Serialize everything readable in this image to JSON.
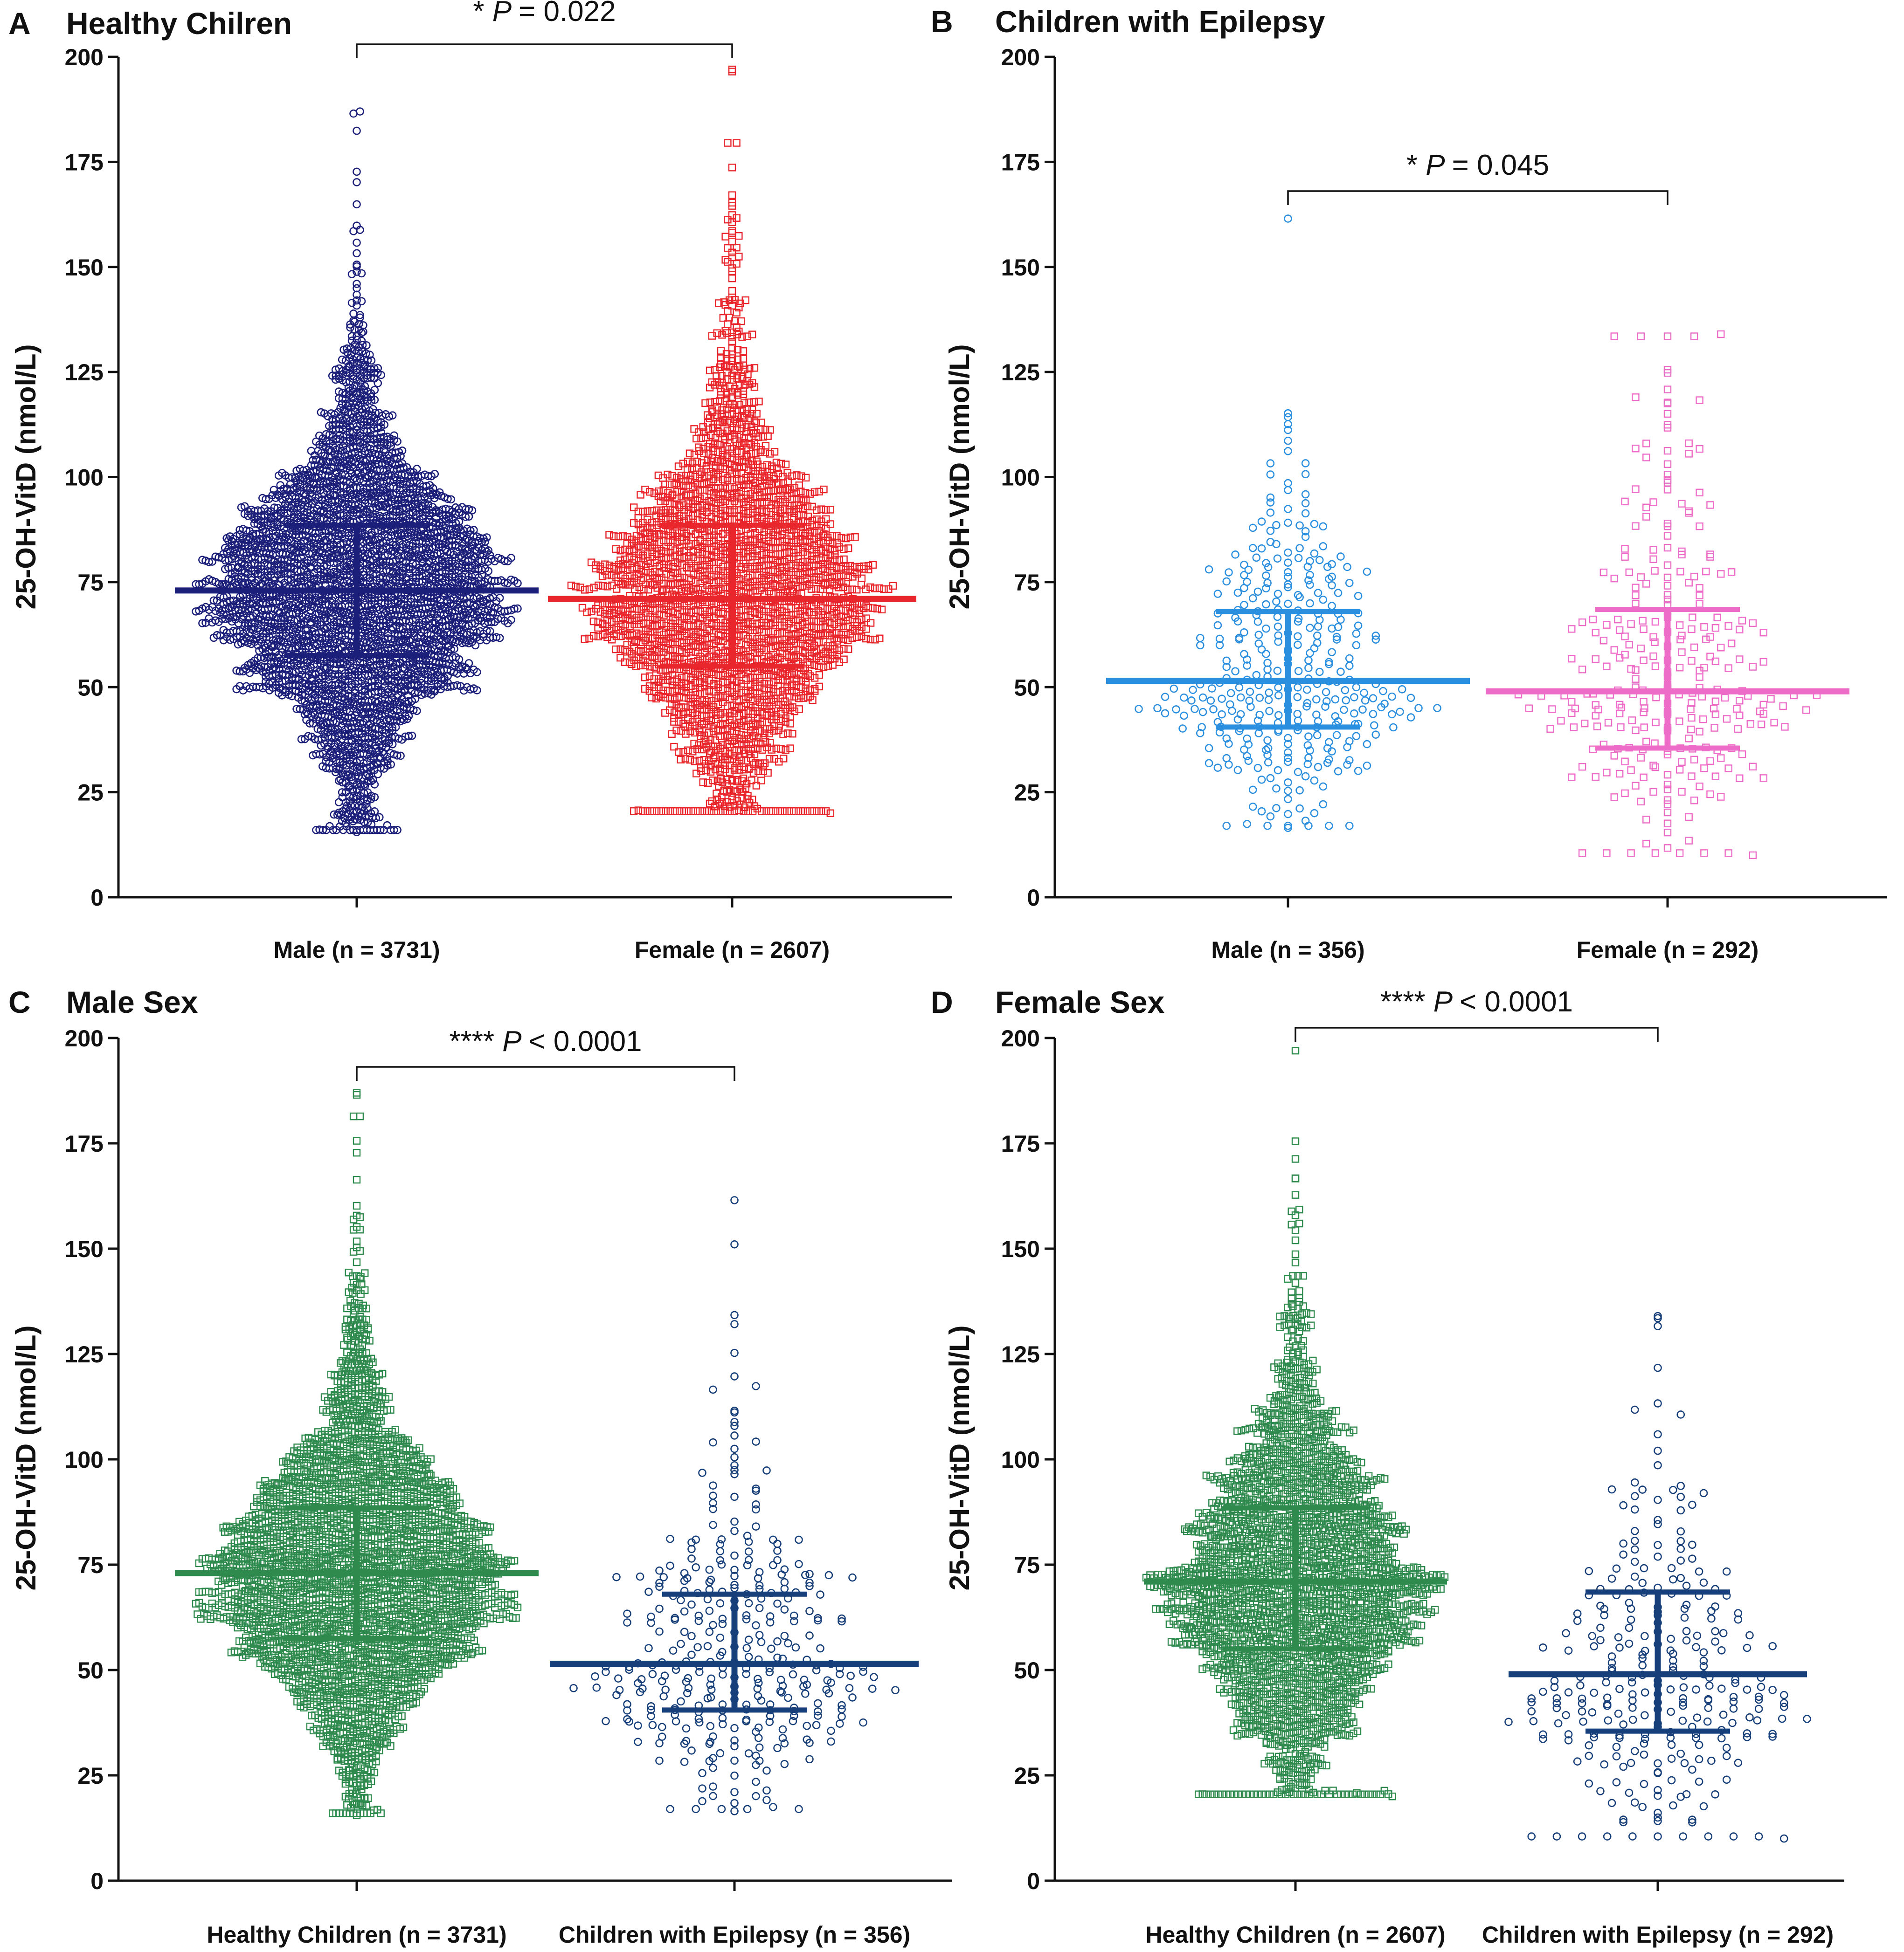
{
  "figure": {
    "panels": [
      {
        "letter": "A",
        "title": "Healthy Chilren"
      },
      {
        "letter": "B",
        "title": "Children with Epilepsy"
      },
      {
        "letter": "C",
        "title": "Male Sex"
      },
      {
        "letter": "D",
        "title": "Female Sex"
      }
    ]
  },
  "chart_data": [
    {
      "type": "scatter",
      "subtype": "beeswarm",
      "title": "Healthy Chilren",
      "ylabel": "25-OH-VitD (nmol/L)",
      "ylim": [
        0,
        200
      ],
      "yticks": [
        "0",
        "25",
        "50",
        "75",
        "100",
        "125",
        "150",
        "175",
        "200"
      ],
      "categories": [
        "Male (n = 3731)",
        "Female (n = 2607)"
      ],
      "series": [
        {
          "name": "Male (n = 3731)",
          "marker": "circle",
          "color": "#1c1f7a",
          "n": 3731,
          "median": 73,
          "q1": 57.5,
          "q3": 88.5,
          "min": 15.5,
          "max": 187
        },
        {
          "name": "Female (n = 2607)",
          "marker": "square",
          "color": "#e8262b",
          "n": 2607,
          "median": 71,
          "q1": 55,
          "q3": 88.5,
          "min": 20,
          "max": 197
        }
      ],
      "annotation": {
        "stars": "*",
        "p_label": "P",
        "p_text": "= 0.022",
        "from": 0,
        "to": 1
      }
    },
    {
      "type": "scatter",
      "subtype": "beeswarm",
      "title": "Children with Epilepsy",
      "ylabel": "25-OH-VitD (nmol/L)",
      "ylim": [
        0,
        200
      ],
      "yticks": [
        "0",
        "25",
        "50",
        "75",
        "100",
        "125",
        "150",
        "175",
        "200"
      ],
      "categories": [
        "Male (n = 356)",
        "Female (n = 292)"
      ],
      "series": [
        {
          "name": "Male (n = 356)",
          "marker": "circle",
          "color": "#2b8fe0",
          "n": 356,
          "median": 51.5,
          "q1": 40.5,
          "q3": 68,
          "min": 16.5,
          "max": 161.5
        },
        {
          "name": "Female (n = 292)",
          "marker": "square",
          "color": "#ec6cc8",
          "n": 292,
          "median": 49,
          "q1": 35.5,
          "q3": 68.5,
          "min": 10,
          "max": 134
        }
      ],
      "annotation": {
        "stars": "*",
        "p_label": "P",
        "p_text": "= 0.045",
        "from": 0,
        "to": 1
      }
    },
    {
      "type": "scatter",
      "subtype": "beeswarm",
      "title": "Male Sex",
      "ylabel": "25-OH-VitD (nmol/L)",
      "ylim": [
        0,
        200
      ],
      "yticks": [
        "0",
        "25",
        "50",
        "75",
        "100",
        "125",
        "150",
        "175",
        "200"
      ],
      "categories": [
        "Healthy Children (n = 3731)",
        "Children with Epilepsy (n = 356)"
      ],
      "series": [
        {
          "name": "Healthy Children (n = 3731)",
          "marker": "square",
          "color": "#2f8a4e",
          "n": 3731,
          "median": 73,
          "q1": 57.5,
          "q3": 88.5,
          "min": 15.5,
          "max": 187
        },
        {
          "name": "Children with Epilepsy (n = 356)",
          "marker": "circle",
          "color": "#173f7a",
          "n": 356,
          "median": 51.5,
          "q1": 40.5,
          "q3": 68,
          "min": 16.5,
          "max": 161.5
        }
      ],
      "annotation": {
        "stars": "****",
        "p_label": "P",
        "p_text": "< 0.0001",
        "from": 0,
        "to": 1
      }
    },
    {
      "type": "scatter",
      "subtype": "beeswarm",
      "title": "Female Sex",
      "ylabel": "25-OH-VitD (nmol/L)",
      "ylim": [
        0,
        200
      ],
      "yticks": [
        "0",
        "25",
        "50",
        "75",
        "100",
        "125",
        "150",
        "175",
        "200"
      ],
      "categories": [
        "Healthy Children (n = 2607)",
        "Children  with Epilepsy (n = 292)"
      ],
      "series": [
        {
          "name": "Healthy Children (n = 2607)",
          "marker": "square",
          "color": "#2f8a4e",
          "n": 2607,
          "median": 71,
          "q1": 55,
          "q3": 88.5,
          "min": 20,
          "max": 197
        },
        {
          "name": "Children  with Epilepsy (n = 292)",
          "marker": "circle",
          "color": "#173f7a",
          "n": 292,
          "median": 49,
          "q1": 35.5,
          "q3": 68.5,
          "min": 10,
          "max": 134
        }
      ],
      "annotation": {
        "stars": "****",
        "p_label": "P",
        "p_text": "< 0.0001",
        "from": 0,
        "to": 1
      }
    }
  ]
}
